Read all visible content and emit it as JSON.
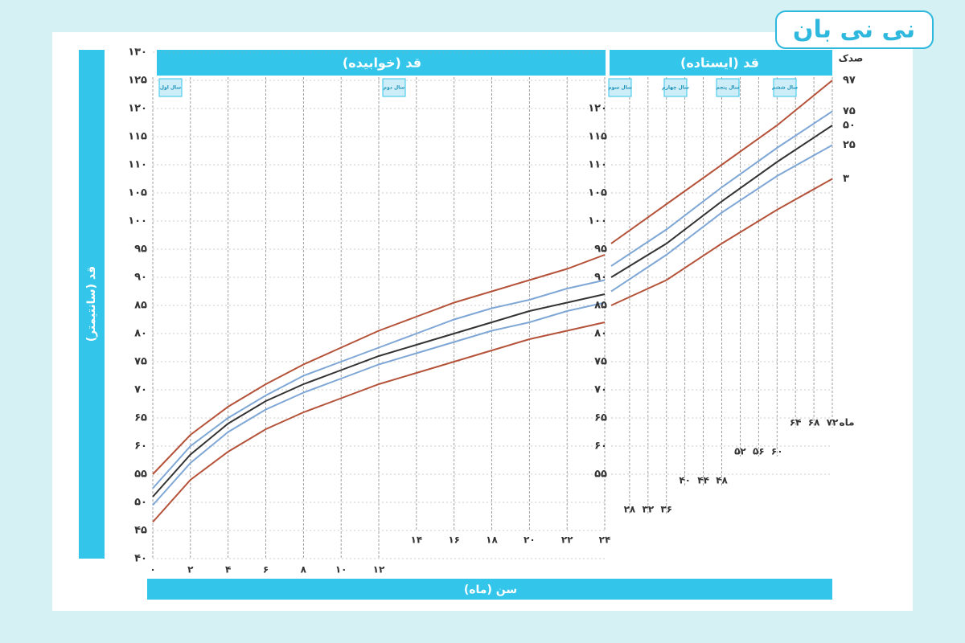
{
  "logo": "نی نی بان",
  "chart_data": [
    {
      "type": "line",
      "title": "قد (خوابیده)",
      "y_label": "قد (سانتیمتر)",
      "x_label": "سن (ماه)",
      "year_labels": [
        "سال اول",
        "سال دوم"
      ],
      "x": [
        0,
        2,
        4,
        6,
        8,
        10,
        12,
        14,
        16,
        18,
        20,
        22,
        24
      ],
      "xlim": [
        0,
        24
      ],
      "xticks": [
        {
          "value": 0,
          "label": "۰"
        },
        {
          "value": 2,
          "label": "۲"
        },
        {
          "value": 4,
          "label": "۴"
        },
        {
          "value": 6,
          "label": "۶"
        },
        {
          "value": 8,
          "label": "۸"
        },
        {
          "value": 10,
          "label": "۱۰"
        },
        {
          "value": 12,
          "label": "۱۲"
        },
        {
          "value": 14,
          "label": "۱۴"
        },
        {
          "value": 16,
          "label": "۱۶"
        },
        {
          "value": 18,
          "label": "۱۸"
        },
        {
          "value": 20,
          "label": "۲۰"
        },
        {
          "value": 22,
          "label": "۲۲"
        },
        {
          "value": 24,
          "label": "۲۴"
        }
      ],
      "ylim": [
        40,
        130
      ],
      "yticks": [
        {
          "value": 40,
          "label": "۴۰"
        },
        {
          "value": 45,
          "label": "۴۵"
        },
        {
          "value": 50,
          "label": "۵۰"
        },
        {
          "value": 55,
          "label": "۵۵"
        },
        {
          "value": 60,
          "label": "۶۰"
        },
        {
          "value": 65,
          "label": "۶۵"
        },
        {
          "value": 70,
          "label": "۷۰"
        },
        {
          "value": 75,
          "label": "۷۵"
        },
        {
          "value": 80,
          "label": "۸۰"
        },
        {
          "value": 85,
          "label": "۸۵"
        },
        {
          "value": 90,
          "label": "۹۰"
        },
        {
          "value": 95,
          "label": "۹۵"
        },
        {
          "value": 100,
          "label": "۱۰۰"
        },
        {
          "value": 105,
          "label": "۱۰۵"
        },
        {
          "value": 110,
          "label": "۱۱۰"
        },
        {
          "value": 115,
          "label": "۱۱۵"
        },
        {
          "value": 120,
          "label": "۱۲۰"
        },
        {
          "value": 125,
          "label": "۱۲۵"
        },
        {
          "value": 130,
          "label": "۱۳۰"
        }
      ],
      "grid": true,
      "series": [
        {
          "color": "#b5533a",
          "values": [
            55,
            62,
            67,
            71,
            74.5,
            77.5,
            80.5,
            83,
            85.5,
            87.5,
            89.5,
            91.5,
            94
          ]
        },
        {
          "color": "#7fa7d6",
          "values": [
            52.5,
            60,
            65,
            69,
            72.5,
            75,
            77.5,
            80,
            82.5,
            84.5,
            86,
            88,
            89.5
          ]
        },
        {
          "color": "#333333",
          "values": [
            51,
            58.5,
            64,
            68,
            71,
            73.5,
            76,
            78,
            80,
            82,
            84,
            85.5,
            87
          ]
        },
        {
          "color": "#7fa7d6",
          "values": [
            49.5,
            57,
            62.5,
            66.5,
            69.5,
            72,
            74.5,
            76.5,
            78.5,
            80.5,
            82,
            84,
            85.5
          ]
        },
        {
          "color": "#b5533a",
          "values": [
            46.5,
            54,
            59,
            63,
            66,
            68.5,
            71,
            73,
            75,
            77,
            79,
            80.5,
            82
          ]
        }
      ]
    },
    {
      "type": "line",
      "title": "قد (ایستاده)",
      "legend_title": "صدک",
      "x_unit": "ماه",
      "year_labels": [
        "سال سوم",
        "سال چهارم",
        "سال پنجم",
        "سال ششم"
      ],
      "x": [
        24,
        36,
        48,
        60,
        72
      ],
      "xlim": [
        24,
        72
      ],
      "xticks": [
        {
          "value": 28,
          "label": "۲۸"
        },
        {
          "value": 32,
          "label": "۳۲"
        },
        {
          "value": 36,
          "label": "۳۶"
        },
        {
          "value": 40,
          "label": "۴۰"
        },
        {
          "value": 44,
          "label": "۴۴"
        },
        {
          "value": 48,
          "label": "۴۸"
        },
        {
          "value": 52,
          "label": "۵۲"
        },
        {
          "value": 56,
          "label": "۵۶"
        },
        {
          "value": 60,
          "label": "۶۰"
        },
        {
          "value": 64,
          "label": "۶۴"
        },
        {
          "value": 68,
          "label": "۶۸"
        },
        {
          "value": 72,
          "label": "۷۲"
        }
      ],
      "ylim": [
        40,
        130
      ],
      "yticks": [
        {
          "value": 55,
          "label": "۵۵"
        },
        {
          "value": 60,
          "label": "۶۰"
        },
        {
          "value": 65,
          "label": "۶۵"
        },
        {
          "value": 70,
          "label": "۷۰"
        },
        {
          "value": 75,
          "label": "۷۵"
        },
        {
          "value": 80,
          "label": "۸۰"
        },
        {
          "value": 85,
          "label": "۸۵"
        },
        {
          "value": 90,
          "label": "۹۰"
        },
        {
          "value": 95,
          "label": "۹۵"
        },
        {
          "value": 100,
          "label": "۱۰۰"
        },
        {
          "value": 105,
          "label": "۱۰۵"
        },
        {
          "value": 110,
          "label": "۱۱۰"
        },
        {
          "value": 115,
          "label": "۱۱۵"
        },
        {
          "value": 120,
          "label": "۱۲۰"
        }
      ],
      "grid": true,
      "series": [
        {
          "name": "۹۷",
          "color": "#b5533a",
          "values": [
            96,
            103,
            110,
            117,
            125
          ]
        },
        {
          "name": "۷۵",
          "color": "#7fa7d6",
          "values": [
            92,
            98.5,
            106,
            113,
            119.5
          ]
        },
        {
          "name": "۵۰",
          "color": "#333333",
          "values": [
            90,
            96,
            103.5,
            110.5,
            117
          ]
        },
        {
          "name": "۲۵",
          "color": "#7fa7d6",
          "values": [
            87.5,
            94,
            101.5,
            108,
            113.5
          ]
        },
        {
          "name": "۳",
          "color": "#b5533a",
          "values": [
            85,
            89.5,
            96,
            102,
            107.5
          ]
        }
      ]
    }
  ]
}
